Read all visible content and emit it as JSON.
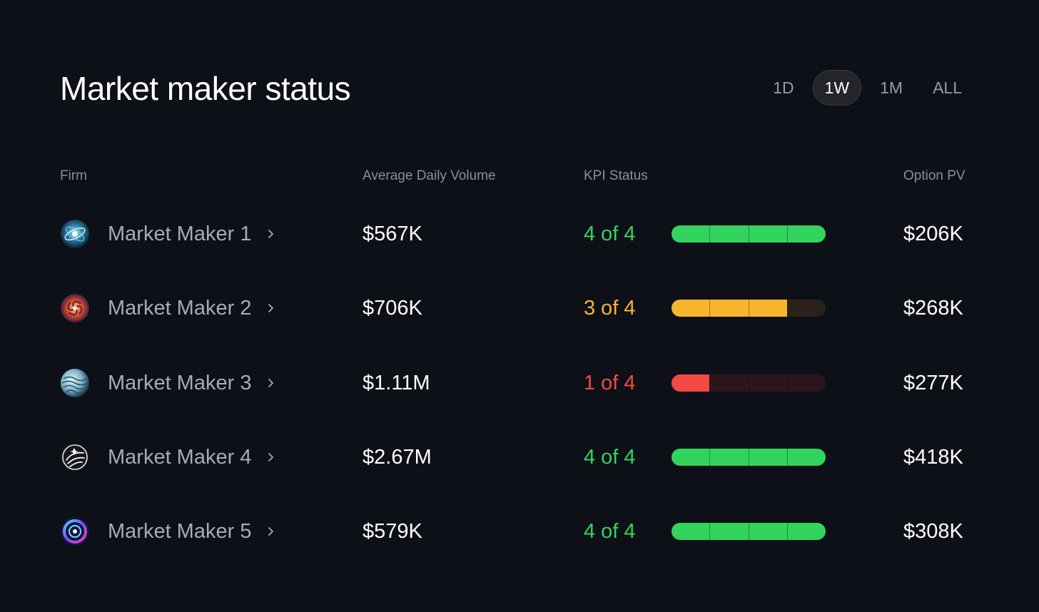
{
  "title": "Market maker status",
  "range_tabs": [
    {
      "label": "1D",
      "active": false
    },
    {
      "label": "1W",
      "active": true
    },
    {
      "label": "1M",
      "active": false
    },
    {
      "label": "ALL",
      "active": false
    }
  ],
  "columns": {
    "firm": "Firm",
    "volume": "Average Daily Volume",
    "kpi": "KPI Status",
    "pv": "Option PV"
  },
  "colors": {
    "good": "#33d45e",
    "warn": "#f7b52e",
    "bad": "#f24a44",
    "good_track": "#12301b",
    "warn_track": "#2a2118",
    "bad_track": "#2b171b"
  },
  "rows": [
    {
      "name": "Market Maker 1",
      "logo": "blue-orb-logo",
      "volume": "$567K",
      "kpi_text": "4 of 4",
      "kpi_met": 4,
      "kpi_total": 4,
      "status": "good",
      "pv": "$206K"
    },
    {
      "name": "Market Maker 2",
      "logo": "orange-spiral-logo",
      "volume": "$706K",
      "kpi_text": "3 of 4",
      "kpi_met": 3,
      "kpi_total": 4,
      "status": "warn",
      "pv": "$268K"
    },
    {
      "name": "Market Maker 3",
      "logo": "wave-sphere-logo",
      "volume": "$1.11M",
      "kpi_text": "1 of 4",
      "kpi_met": 1,
      "kpi_total": 4,
      "status": "bad",
      "pv": "$277K"
    },
    {
      "name": "Market Maker 4",
      "logo": "white-swirl-logo",
      "volume": "$2.67M",
      "kpi_text": "4 of 4",
      "kpi_met": 4,
      "kpi_total": 4,
      "status": "good",
      "pv": "$418K"
    },
    {
      "name": "Market Maker 5",
      "logo": "neon-ring-logo",
      "volume": "$579K",
      "kpi_text": "4 of 4",
      "kpi_met": 4,
      "kpi_total": 4,
      "status": "good",
      "pv": "$308K"
    }
  ]
}
